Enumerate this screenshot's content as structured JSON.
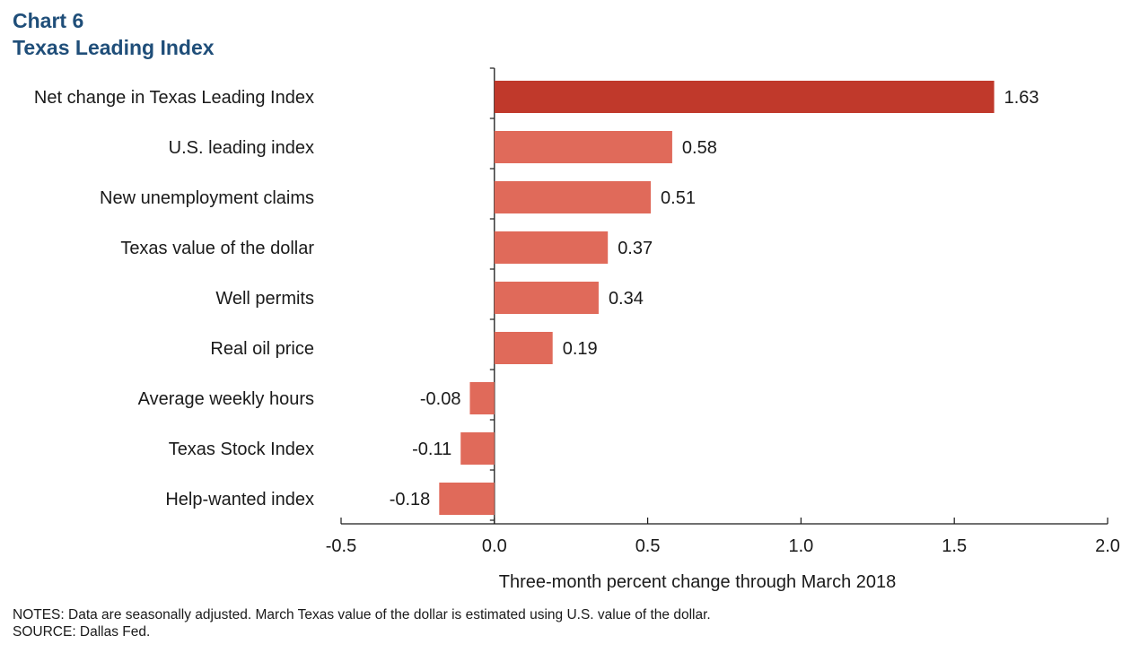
{
  "header": {
    "chart_number": "Chart 6",
    "title": "Texas Leading Index"
  },
  "notes": {
    "line1": "NOTES: Data are seasonally adjusted. March Texas value of the dollar is estimated using U.S. value of the dollar.",
    "line2": "SOURCE: Dallas Fed."
  },
  "colors": {
    "highlight_bar": "#c0392b",
    "bar": "#e06a5a",
    "title": "#1f4e79",
    "axis": "#1a1a1a"
  },
  "chart_data": {
    "type": "bar",
    "orientation": "horizontal",
    "title": "Texas Leading Index",
    "xlabel": "Three-month percent change through March 2018",
    "ylabel": "",
    "xlim": [
      -0.5,
      2.0
    ],
    "xticks": [
      -0.5,
      0.0,
      0.5,
      1.0,
      1.5,
      2.0
    ],
    "xtick_labels": [
      "-0.5",
      "0.0",
      "0.5",
      "1.0",
      "1.5",
      "2.0"
    ],
    "grid": false,
    "categories": [
      "Net change in Texas Leading Index",
      "U.S. leading index",
      "New unemployment claims",
      "Texas value of the dollar",
      "Well permits",
      "Real oil price",
      "Average weekly hours",
      "Texas Stock Index",
      "Help-wanted index"
    ],
    "values": [
      1.63,
      0.58,
      0.51,
      0.37,
      0.34,
      0.19,
      -0.08,
      -0.11,
      -0.18
    ],
    "value_labels": [
      "1.63",
      "0.58",
      "0.51",
      "0.37",
      "0.34",
      "0.19",
      "-0.08",
      "-0.11",
      "-0.18"
    ],
    "highlighted_category": "Net change in Texas Leading Index"
  }
}
